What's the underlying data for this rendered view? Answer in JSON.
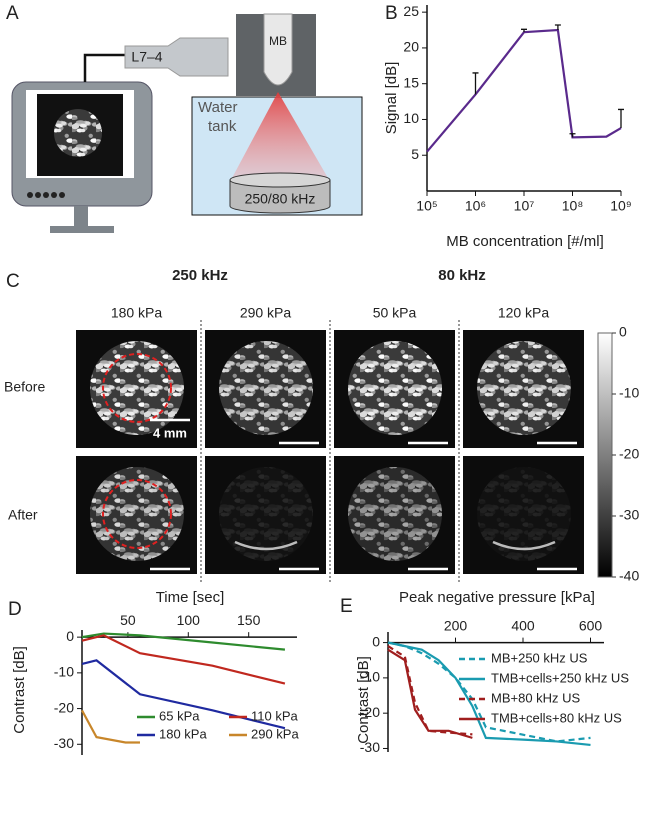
{
  "panel_a": {
    "label": "A",
    "probe": "L7–4",
    "syringe": "MB",
    "tank": [
      "Water",
      "tank"
    ],
    "transducer": "250/80 kHz"
  },
  "panel_c": {
    "label": "C",
    "frequencies": [
      "250 kHz",
      "80 kHz"
    ],
    "pressures": [
      "180 kPa",
      "290 kPa",
      "50 kPa",
      "120 kPa"
    ],
    "rows": [
      "Before",
      "After"
    ],
    "scale_bar": "4 mm",
    "colorbar": {
      "lim": [
        -40,
        0
      ],
      "ticks": [
        0,
        -10,
        -20,
        -30,
        -40
      ]
    }
  },
  "chart_data": [
    {
      "type": "line",
      "panel": "B",
      "xlabel": "MB concentration [#/ml]",
      "ylabel": "Signal [dB]",
      "xscale": "log",
      "xaxis": "bottom",
      "xlim": [
        100000,
        1000000000
      ],
      "ylim": [
        0,
        26
      ],
      "xticks": [
        {
          "value": 100000,
          "label": "10⁵"
        },
        {
          "value": 1000000,
          "label": "10⁶"
        },
        {
          "value": 10000000,
          "label": "10⁷"
        },
        {
          "value": 100000000,
          "label": "10⁸"
        },
        {
          "value": 1000000000,
          "label": "10⁹"
        }
      ],
      "yticks": [
        5,
        10,
        15,
        20,
        25
      ],
      "series": [
        {
          "color": "#5a2a8c",
          "x": [
            100000,
            1000000,
            10000000,
            50000000,
            100000000,
            500000000,
            1000000000
          ],
          "values": [
            5.5,
            13.5,
            22.2,
            22.5,
            7.5,
            7.6,
            8.8
          ],
          "errors": [
            0,
            3,
            0.4,
            0.7,
            0.5,
            0,
            2.6
          ]
        }
      ]
    },
    {
      "type": "line",
      "panel": "D",
      "xlabel": "Time [sec]",
      "ylabel": "Contrast [dB]",
      "xaxis": "top",
      "xlim": [
        12,
        190
      ],
      "ylim": [
        -33,
        2
      ],
      "xticks": [
        50,
        100,
        150
      ],
      "yticks": [
        0,
        -10,
        -20,
        -30
      ],
      "legend": "lower right",
      "legend_columns": 2,
      "series": [
        {
          "name": "65 kPa",
          "color": "#2e8b2e",
          "x": [
            12,
            30,
            60,
            120,
            180
          ],
          "values": [
            0,
            1,
            0.5,
            -1.5,
            -3.5
          ]
        },
        {
          "name": "110 kPa",
          "color": "#c0281f",
          "x": [
            12,
            30,
            60,
            120,
            180
          ],
          "values": [
            -1,
            0.5,
            -4.5,
            -8,
            -13
          ]
        },
        {
          "name": "180 kPa",
          "color": "#1f2aa0",
          "x": [
            12,
            24,
            60,
            120,
            180
          ],
          "values": [
            -7.5,
            -6.5,
            -16,
            -20.5,
            -25.5
          ]
        },
        {
          "name": "290 kPa",
          "color": "#c8862a",
          "x": [
            12,
            24,
            48,
            60
          ],
          "values": [
            -20.5,
            -28,
            -29.5,
            -29.5
          ]
        }
      ]
    },
    {
      "type": "line",
      "panel": "E",
      "xlabel": "Peak negative pressure [kPa]",
      "ylabel": "Contrast [dB]",
      "xaxis": "top",
      "xlim": [
        0,
        640
      ],
      "ylim": [
        -31,
        3
      ],
      "xticks": [
        200,
        400,
        600
      ],
      "yticks": [
        0,
        -10,
        -20,
        -30
      ],
      "legend": "upper right",
      "legend_columns": 1,
      "series": [
        {
          "name": "MB+250 kHz US",
          "color": "#1a9bb0",
          "style": "dashed",
          "x": [
            0,
            50,
            100,
            150,
            200,
            250,
            290,
            500,
            600
          ],
          "values": [
            0,
            -1,
            -3,
            -6,
            -10,
            -16,
            -24,
            -28,
            -27
          ]
        },
        {
          "name": "TMB+cells+250 kHz US",
          "color": "#1a9bb0",
          "style": "solid",
          "x": [
            0,
            50,
            100,
            150,
            200,
            250,
            290,
            400,
            500,
            600
          ],
          "values": [
            0,
            -1,
            -2,
            -5,
            -10,
            -18,
            -27,
            -27.5,
            -28,
            -29
          ]
        },
        {
          "name": "MB+80 kHz US",
          "color": "#a01e1e",
          "style": "dashed",
          "x": [
            0,
            50,
            80,
            120,
            180,
            250
          ],
          "values": [
            -1,
            -4,
            -17,
            -25,
            -25.5,
            -26
          ]
        },
        {
          "name": "TMB+cells+80 kHz US",
          "color": "#a01e1e",
          "style": "solid",
          "x": [
            0,
            50,
            80,
            120,
            180,
            250
          ],
          "values": [
            -2,
            -5,
            -19,
            -25,
            -25,
            -27
          ]
        }
      ]
    }
  ]
}
